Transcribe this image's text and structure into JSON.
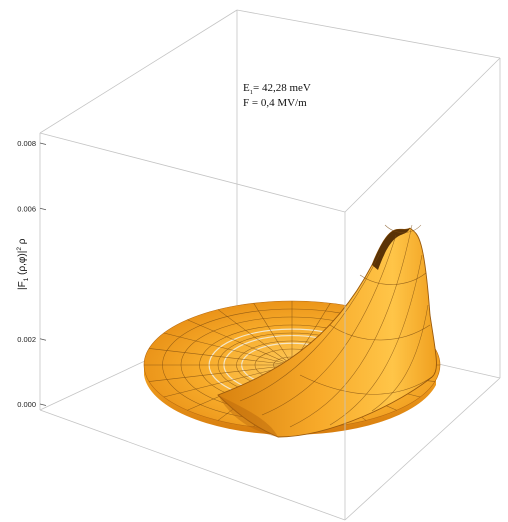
{
  "chart_data": {
    "type": "surface3d",
    "annotation": {
      "energy_label": "E",
      "energy_subscript": "1",
      "energy_value": "= 42,28 meV",
      "field_line": "F = 0,4 MV/m"
    },
    "zlabel": {
      "main": "|F",
      "sub1": "1",
      "mid": " (ρ,φ)|",
      "sup": "2",
      "tail": " ρ"
    },
    "z_ticks": [
      "0.000",
      "0.002",
      "0.006",
      "0.008"
    ],
    "z_tick_values": [
      0.0,
      0.002,
      0.006,
      0.008
    ],
    "zlim": [
      0,
      0.008
    ],
    "peak_value": 0.0068,
    "surface_color": "#f6a51f",
    "surface_highlight": "#ffd36a",
    "surface_shadow": "#c56f0c",
    "mesh_color": "#7a4a10",
    "ring_color": "#f3e6c8",
    "box_color": "#c4c4c4"
  }
}
